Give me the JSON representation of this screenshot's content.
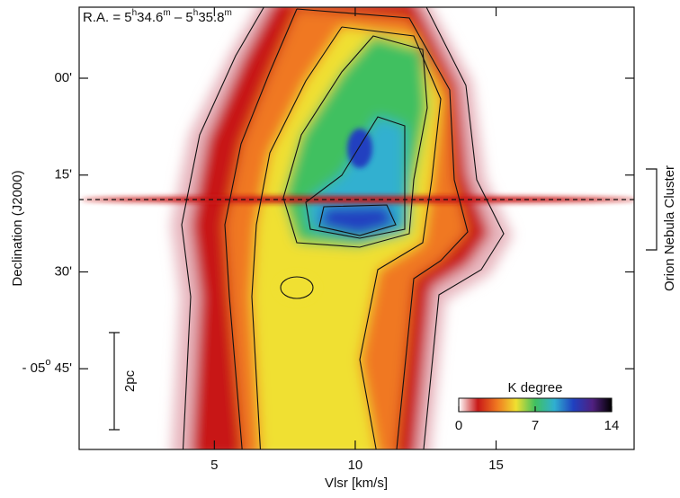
{
  "chart_data": {
    "type": "heatmap",
    "annotation": {
      "parts": [
        {
          "text": "R.A. = 5"
        },
        {
          "text": "h",
          "sup": true
        },
        {
          "text": "34.6"
        },
        {
          "text": "m",
          "sup": true
        },
        {
          "text": " – 5"
        },
        {
          "text": "h",
          "sup": true
        },
        {
          "text": "35.8"
        },
        {
          "text": "m",
          "sup": true
        }
      ]
    },
    "x_label": "Vlsr [km/s]",
    "y_label": "Declination (J2000)",
    "xlim": [
      0.2,
      19.9
    ],
    "xticks": [
      5,
      10,
      15
    ],
    "ylim": [
      -11,
      57.5
    ],
    "y_inverted": true,
    "yticks": [
      {
        "value": 0,
        "label": "00'"
      },
      {
        "value": 15,
        "label": "15'"
      },
      {
        "value": 30,
        "label": "30'"
      },
      {
        "value": 45,
        "label": "45'",
        "prefix": "- 05",
        "prefix_sup": "o"
      }
    ],
    "region_label": "Orion Nebula Cluster",
    "scale_bar_label": "2pc",
    "colorbar": {
      "title": "K degree",
      "lim": [
        0,
        14
      ],
      "ticks": [
        0,
        7,
        14
      ],
      "colors": [
        "#ffffff",
        "#c81818",
        "#f07820",
        "#f0e030",
        "#40c060",
        "#30b0d0",
        "#2040c0",
        "#502080",
        "#000000"
      ]
    }
  }
}
